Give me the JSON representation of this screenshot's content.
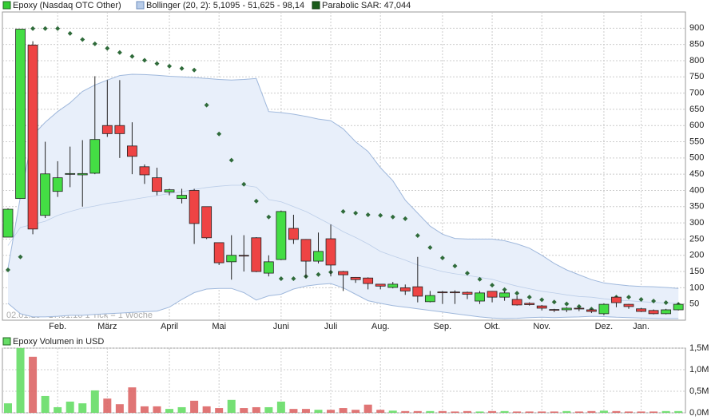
{
  "chart_data": [
    {
      "type": "candlestick",
      "name": "Epoxy (Nasdaq OTC Other)",
      "footnote": "02.01.15 - 17.01.16   1 Tick = 1 Woche",
      "up_color": "#44dd44",
      "down_color": "#ee4444",
      "categories": [
        null,
        null,
        null,
        null,
        "Feb.",
        null,
        null,
        null,
        "März",
        null,
        null,
        null,
        null,
        "April",
        null,
        null,
        null,
        "Mai",
        null,
        null,
        null,
        null,
        "Juni",
        null,
        null,
        null,
        "Juli",
        null,
        null,
        null,
        "Aug.",
        null,
        null,
        null,
        null,
        "Sep.",
        null,
        null,
        null,
        "Okt.",
        null,
        null,
        null,
        "Nov.",
        null,
        null,
        null,
        null,
        "Dez.",
        null,
        null,
        "Jan.",
        null,
        null,
        null
      ],
      "open": [
        256,
        375,
        848,
        323,
        397,
        450,
        448,
        453,
        600,
        600,
        537,
        473,
        439,
        395,
        375,
        400,
        350,
        239,
        180,
        200,
        254,
        145,
        187,
        283,
        249,
        182,
        251,
        150,
        132,
        130,
        111,
        101,
        100,
        103,
        57,
        87,
        87,
        86,
        59,
        89,
        71,
        64,
        52,
        44,
        33,
        32,
        37,
        32,
        20,
        71,
        49,
        35,
        30,
        20,
        32
      ],
      "high": [
        345,
        897,
        860,
        550,
        490,
        535,
        555,
        752,
        740,
        740,
        610,
        480,
        470,
        405,
        405,
        405,
        350,
        240,
        262,
        262,
        256,
        200,
        338,
        325,
        250,
        270,
        295,
        152,
        133,
        132,
        112,
        118,
        110,
        195,
        90,
        90,
        92,
        88,
        90,
        90,
        90,
        75,
        55,
        47,
        35,
        40,
        40,
        35,
        52,
        74,
        50,
        38,
        33,
        35,
        52
      ],
      "low": [
        256,
        375,
        265,
        315,
        380,
        410,
        350,
        450,
        565,
        500,
        450,
        420,
        385,
        385,
        360,
        235,
        250,
        170,
        125,
        150,
        148,
        135,
        185,
        235,
        130,
        175,
        135,
        90,
        115,
        95,
        95,
        98,
        78,
        55,
        55,
        50,
        50,
        65,
        50,
        55,
        60,
        45,
        45,
        30,
        25,
        25,
        28,
        22,
        15,
        40,
        35,
        25,
        18,
        18,
        30
      ],
      "close": [
        342,
        897,
        281,
        451,
        439,
        452,
        452,
        557,
        575,
        575,
        505,
        448,
        397,
        402,
        385,
        298,
        254,
        177,
        200,
        198,
        150,
        180,
        335,
        249,
        182,
        212,
        170,
        140,
        125,
        113,
        105,
        111,
        90,
        74,
        76,
        85,
        86,
        80,
        84,
        71,
        84,
        47,
        48,
        37,
        32,
        37,
        35,
        27,
        49,
        54,
        42,
        27,
        20,
        32,
        49
      ],
      "overlays": [
        {
          "name": "Bollinger (20, 2): 5,1095 - 51,625 - 98,14",
          "color": "#9fb8dc",
          "fill": "#e8effa",
          "upper": [
            160,
            380,
            570,
            610,
            643,
            670,
            705,
            725,
            740,
            754,
            758,
            757,
            755,
            752,
            750,
            748,
            745,
            742,
            740,
            742,
            745,
            643,
            640,
            635,
            628,
            620,
            615,
            590,
            550,
            520,
            470,
            430,
            370,
            330,
            290,
            265,
            252,
            250,
            250,
            250,
            245,
            235,
            222,
            200,
            175,
            155,
            140,
            125,
            115,
            110,
            106,
            104,
            103,
            101,
            98
          ],
          "middle": [
            230,
            286,
            295,
            305,
            323,
            335,
            345,
            352,
            360,
            365,
            372,
            378,
            384,
            390,
            396,
            403,
            409,
            413,
            416,
            416,
            410,
            372,
            365,
            350,
            335,
            315,
            295,
            273,
            255,
            235,
            212,
            198,
            185,
            170,
            160,
            150,
            143,
            138,
            132,
            126,
            115,
            105,
            97,
            89,
            84,
            78,
            73,
            71,
            66,
            62,
            60,
            57,
            55,
            53,
            52
          ],
          "lower": [
            52,
            20,
            10,
            10,
            12,
            15,
            15,
            18,
            20,
            22,
            24,
            26,
            28,
            40,
            64,
            85,
            96,
            98,
            98,
            85,
            62,
            75,
            80,
            96,
            105,
            110,
            113,
            100,
            80,
            60,
            52,
            45,
            40,
            35,
            30,
            25,
            20,
            15,
            10,
            7,
            5,
            6,
            8,
            9,
            8,
            9,
            10,
            12,
            11,
            9,
            8,
            7,
            6,
            5,
            5
          ]
        },
        {
          "name": "Parabolic SAR: 47,044",
          "color": "#2f6b3a",
          "values": [
            155,
            195,
            899,
            899,
            899,
            884,
            865,
            852,
            838,
            825,
            813,
            801,
            791,
            783,
            776,
            771,
            663,
            574,
            493,
            419,
            367,
            318,
            128,
            128,
            135,
            141,
            148,
            335,
            330,
            325,
            323,
            318,
            313,
            261,
            224,
            192,
            167,
            145,
            126,
            108,
            94,
            83,
            71,
            63,
            56,
            50,
            42,
            34,
            30,
            71,
            71,
            64,
            59,
            54,
            49
          ]
        }
      ],
      "ylim": [
        0,
        950
      ],
      "yticks": [
        50,
        100,
        150,
        200,
        250,
        300,
        350,
        400,
        450,
        500,
        550,
        600,
        650,
        700,
        750,
        800,
        850,
        900
      ],
      "grid": true
    },
    {
      "type": "bar",
      "title": "Epoxy Volumen in USD",
      "values": [
        220000,
        1500000,
        1300000,
        390000,
        130000,
        260000,
        220000,
        520000,
        330000,
        200000,
        590000,
        150000,
        150000,
        90000,
        130000,
        280000,
        150000,
        110000,
        300000,
        110000,
        130000,
        130000,
        260000,
        90000,
        90000,
        70000,
        70000,
        110000,
        70000,
        190000,
        70000,
        50000,
        40000,
        40000,
        40000,
        40000,
        30000,
        40000,
        30000,
        40000,
        40000,
        30000,
        30000,
        30000,
        30000,
        40000,
        30000,
        40000,
        50000,
        40000,
        30000,
        30000,
        30000,
        40000,
        40000
      ],
      "ylim": [
        0,
        1500000
      ],
      "yticks": [
        {
          "value": 0,
          "label": "0,0M"
        },
        {
          "value": 500000,
          "label": "0,5M"
        },
        {
          "value": 1000000,
          "label": "1,0M"
        },
        {
          "value": 1500000,
          "label": "1,5M"
        }
      ],
      "grid": true
    }
  ]
}
